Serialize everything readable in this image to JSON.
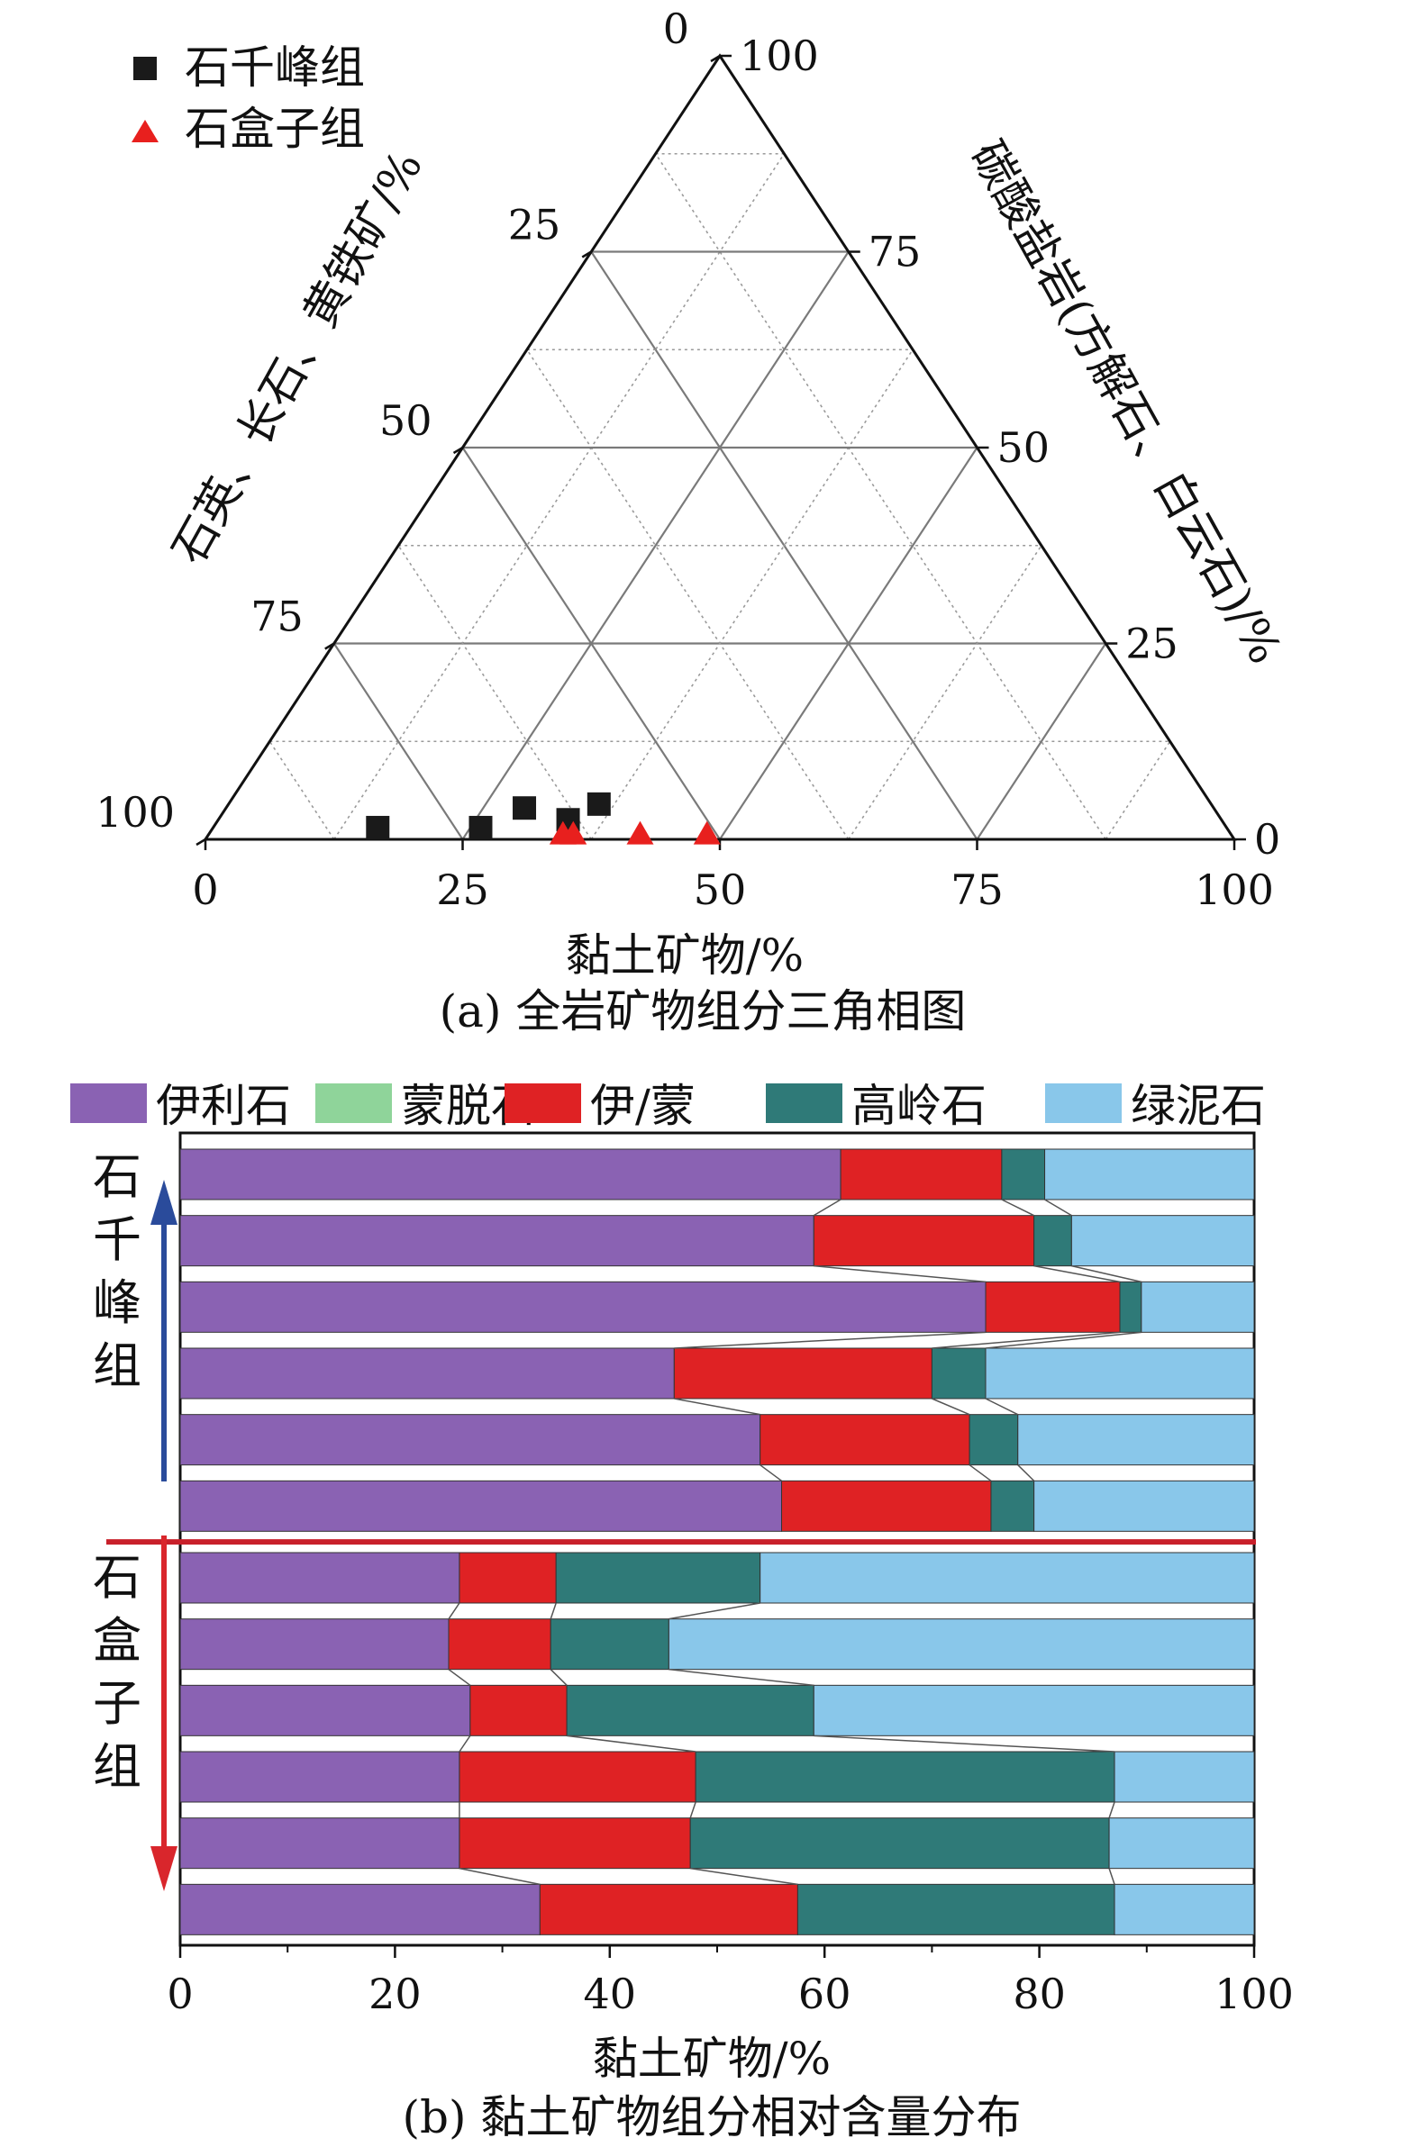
{
  "chart_data": [
    {
      "type": "ternary-scatter",
      "caption": "(a) 全岩矿物组分三角相图",
      "axes": {
        "bottom": {
          "label": "黏土矿物/%",
          "ticks": [
            "0",
            "25",
            "50",
            "75",
            "100"
          ]
        },
        "left": {
          "label": "石英、长石、黄铁矿/%",
          "ticks": [
            "0",
            "25",
            "50",
            "75",
            "100"
          ]
        },
        "right": {
          "label": "碳酸盐岩(方解石、白云石)/%",
          "ticks": [
            "0",
            "25",
            "50",
            "75",
            "100"
          ]
        }
      },
      "legend": {
        "position": "top-left"
      },
      "series": [
        {
          "name": "石千峰组",
          "marker": "square",
          "color": "#1a1a1a",
          "points": [
            {
              "clay": 16,
              "carbonate": 1.5
            },
            {
              "clay": 26,
              "carbonate": 1.5
            },
            {
              "clay": 29,
              "carbonate": 4
            },
            {
              "clay": 34,
              "carbonate": 2.5
            },
            {
              "clay": 36,
              "carbonate": 4.5
            }
          ]
        },
        {
          "name": "石盒子组",
          "marker": "triangle",
          "color": "#e8201e",
          "points": [
            {
              "clay": 34.5,
              "carbonate": 0.5
            },
            {
              "clay": 35.5,
              "carbonate": 0.5
            },
            {
              "clay": 42,
              "carbonate": 0.5
            },
            {
              "clay": 48.5,
              "carbonate": 0.5
            }
          ]
        }
      ]
    },
    {
      "type": "stacked-bar-horizontal",
      "caption": "(b) 黏土矿物组分相对含量分布",
      "xlabel": "黏土矿物/%",
      "xlim": [
        0,
        100
      ],
      "xticks": [
        "0",
        "20",
        "40",
        "60",
        "80",
        "100"
      ],
      "legend": {
        "position": "top"
      },
      "series": [
        {
          "name": "伊利石",
          "color": "#8a62b3"
        },
        {
          "name": "蒙脱石",
          "color": "#8fd49a"
        },
        {
          "name": "伊/蒙",
          "color": "#df2224"
        },
        {
          "name": "高岭石",
          "color": "#2f7a78"
        },
        {
          "name": "绿泥石",
          "color": "#89c7ea"
        }
      ],
      "groups": [
        {
          "name": "石千峰组",
          "label_chars": [
            "石",
            "千",
            "峰",
            "组"
          ],
          "arrow": "up",
          "color": "#2a4b9b"
        },
        {
          "name": "石盒子组",
          "label_chars": [
            "石",
            "盒",
            "子",
            "组"
          ],
          "arrow": "down",
          "color": "#d9262c"
        }
      ],
      "bars": [
        {
          "group": "石千峰组",
          "values": [
            61.5,
            0,
            15,
            4,
            19.5
          ]
        },
        {
          "group": "石千峰组",
          "values": [
            59,
            0,
            20.5,
            3.5,
            17
          ]
        },
        {
          "group": "石千峰组",
          "values": [
            75,
            0,
            12.5,
            2,
            10.5
          ]
        },
        {
          "group": "石千峰组",
          "values": [
            46,
            0,
            24,
            5,
            25
          ]
        },
        {
          "group": "石千峰组",
          "values": [
            54,
            0,
            19.5,
            4.5,
            22
          ]
        },
        {
          "group": "石千峰组",
          "values": [
            56,
            0,
            19.5,
            4,
            20.5
          ]
        },
        {
          "group": "石盒子组",
          "values": [
            26,
            0,
            9,
            19,
            46
          ]
        },
        {
          "group": "石盒子组",
          "values": [
            25,
            0,
            9.5,
            11,
            54.5
          ]
        },
        {
          "group": "石盒子组",
          "values": [
            27,
            0,
            9,
            23,
            41
          ]
        },
        {
          "group": "石盒子组",
          "values": [
            26,
            0,
            22,
            39,
            13
          ]
        },
        {
          "group": "石盒子组",
          "values": [
            26,
            0,
            21.5,
            39,
            13.5
          ]
        },
        {
          "group": "石盒子组",
          "values": [
            33.5,
            0,
            24,
            29.5,
            13
          ]
        }
      ]
    }
  ]
}
